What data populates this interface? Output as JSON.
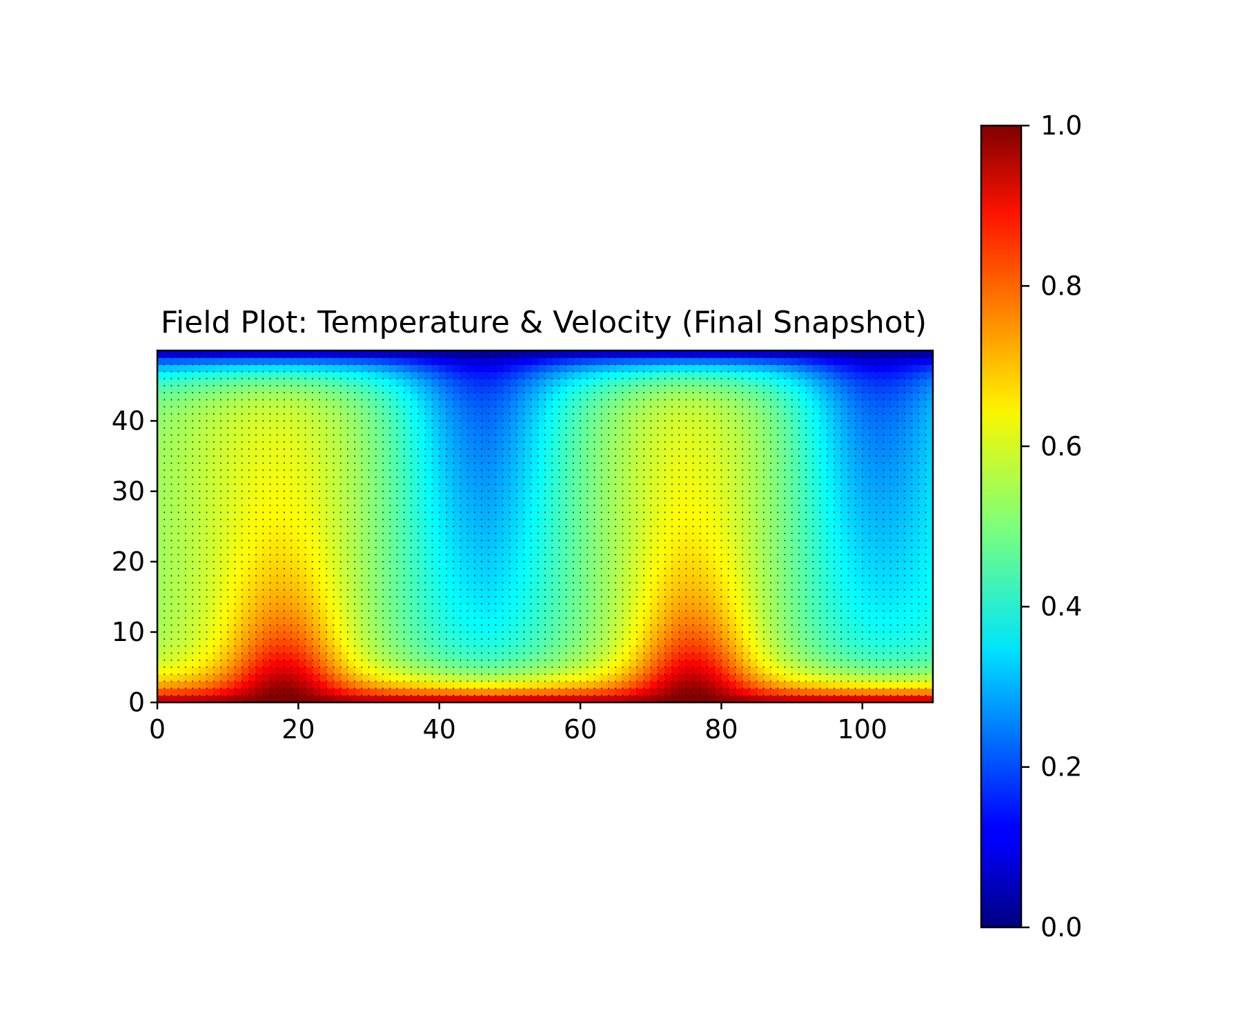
{
  "chart_data": {
    "type": "heatmap",
    "title": "Field Plot: Temperature & Velocity (Final Snapshot)",
    "xlabel": "",
    "ylabel": "",
    "xlim": [
      0,
      110
    ],
    "ylim": [
      0,
      50
    ],
    "x_ticks": [
      0,
      20,
      40,
      60,
      80,
      100
    ],
    "x_tick_labels": [
      "0",
      "20",
      "40",
      "60",
      "80",
      "100"
    ],
    "y_ticks": [
      0,
      10,
      20,
      30,
      40
    ],
    "y_tick_labels": [
      "0",
      "10",
      "20",
      "30",
      "40"
    ],
    "grid": false,
    "colormap": "jet",
    "colorbar": {
      "range": [
        0.0,
        1.0
      ],
      "ticks": [
        0.0,
        0.2,
        0.4,
        0.6,
        0.8,
        1.0
      ],
      "tick_labels": [
        "0.0",
        "0.2",
        "0.4",
        "0.6",
        "0.8",
        "1.0"
      ]
    },
    "field": {
      "nx": 110,
      "ny": 50,
      "bottom_value": 1.0,
      "top_value": 0.0,
      "plume_centers_x": [
        18,
        76
      ],
      "downwelling_centers_x": [
        46,
        102
      ],
      "interior_range": [
        0.3,
        0.6
      ]
    },
    "overlay": {
      "type": "quiver",
      "description_color": "#000000"
    }
  }
}
